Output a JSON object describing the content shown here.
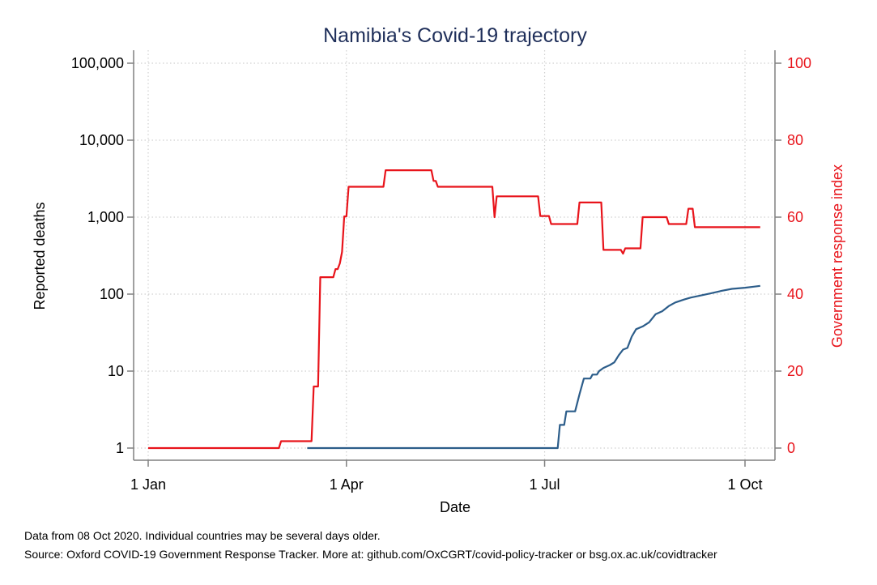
{
  "chart_data": {
    "type": "line",
    "title": "Namibia's Covid-19 trajectory",
    "xlabel": "Date",
    "ylabel_left": "Reported deaths",
    "ylabel_right": "Government response index",
    "x_ticks": [
      {
        "label": "1 Jan",
        "date": "2020-01-01"
      },
      {
        "label": "1 Apr",
        "date": "2020-04-01"
      },
      {
        "label": "1 Jul",
        "date": "2020-07-01"
      },
      {
        "label": "1 Oct",
        "date": "2020-10-01"
      }
    ],
    "y_left": {
      "scale": "log",
      "ticks": [
        "1",
        "10",
        "100",
        "1,000",
        "10,000",
        "100,000"
      ],
      "tick_values": [
        1,
        10,
        100,
        1000,
        10000,
        100000
      ]
    },
    "y_right": {
      "scale": "linear",
      "ticks": [
        "0",
        "20",
        "40",
        "60",
        "80",
        "100"
      ],
      "tick_values": [
        0,
        20,
        40,
        60,
        80,
        100
      ],
      "range": [
        0,
        100
      ]
    },
    "grid": true,
    "colors": {
      "deaths": "#2c5d8a",
      "response": "#e8141b",
      "axis": "#808080",
      "grid": "#d0d0d0",
      "title": "#1f2f5a"
    },
    "series": [
      {
        "axis": "right",
        "points": [
          [
            "2020-01-01",
            0
          ],
          [
            "2020-03-01",
            0
          ],
          [
            "2020-03-02",
            1.8
          ],
          [
            "2020-03-16",
            1.8
          ],
          [
            "2020-03-17",
            16
          ],
          [
            "2020-03-19",
            16
          ],
          [
            "2020-03-20",
            44.4
          ],
          [
            "2020-03-26",
            44.4
          ],
          [
            "2020-03-27",
            46.5
          ],
          [
            "2020-03-28",
            46.5
          ],
          [
            "2020-03-29",
            48
          ],
          [
            "2020-03-30",
            51
          ],
          [
            "2020-03-31",
            60.2
          ],
          [
            "2020-04-01",
            60.2
          ],
          [
            "2020-04-02",
            67.9
          ],
          [
            "2020-04-18",
            67.9
          ],
          [
            "2020-04-19",
            72.2
          ],
          [
            "2020-05-10",
            72.2
          ],
          [
            "2020-05-11",
            69.4
          ],
          [
            "2020-05-12",
            69.4
          ],
          [
            "2020-05-13",
            67.9
          ],
          [
            "2020-06-07",
            67.9
          ],
          [
            "2020-06-08",
            60
          ],
          [
            "2020-06-09",
            65.4
          ],
          [
            "2020-06-28",
            65.4
          ],
          [
            "2020-06-29",
            60.3
          ],
          [
            "2020-07-03",
            60.3
          ],
          [
            "2020-07-04",
            58.2
          ],
          [
            "2020-07-16",
            58.2
          ],
          [
            "2020-07-17",
            63.8
          ],
          [
            "2020-07-27",
            63.8
          ],
          [
            "2020-07-28",
            51.5
          ],
          [
            "2020-08-05",
            51.5
          ],
          [
            "2020-08-06",
            50.5
          ],
          [
            "2020-08-07",
            51.9
          ],
          [
            "2020-08-14",
            51.9
          ],
          [
            "2020-08-15",
            60
          ],
          [
            "2020-08-26",
            60
          ],
          [
            "2020-08-27",
            58.2
          ],
          [
            "2020-09-04",
            58.2
          ],
          [
            "2020-09-05",
            62.2
          ],
          [
            "2020-09-07",
            62.2
          ],
          [
            "2020-09-08",
            57.4
          ],
          [
            "2020-10-08",
            57.4
          ]
        ]
      },
      {
        "axis": "left",
        "points": [
          [
            "2020-03-14",
            1
          ],
          [
            "2020-07-07",
            1
          ],
          [
            "2020-07-08",
            2
          ],
          [
            "2020-07-10",
            2
          ],
          [
            "2020-07-11",
            3
          ],
          [
            "2020-07-15",
            3
          ],
          [
            "2020-07-17",
            5
          ],
          [
            "2020-07-19",
            8
          ],
          [
            "2020-07-22",
            8
          ],
          [
            "2020-07-23",
            9
          ],
          [
            "2020-07-25",
            9
          ],
          [
            "2020-07-26",
            10
          ],
          [
            "2020-07-28",
            11
          ],
          [
            "2020-07-31",
            12
          ],
          [
            "2020-08-02",
            13
          ],
          [
            "2020-08-04",
            16
          ],
          [
            "2020-08-06",
            19
          ],
          [
            "2020-08-08",
            20
          ],
          [
            "2020-08-10",
            28
          ],
          [
            "2020-08-12",
            35
          ],
          [
            "2020-08-15",
            38
          ],
          [
            "2020-08-18",
            43
          ],
          [
            "2020-08-21",
            55
          ],
          [
            "2020-08-24",
            60
          ],
          [
            "2020-08-27",
            70
          ],
          [
            "2020-08-30",
            78
          ],
          [
            "2020-09-03",
            85
          ],
          [
            "2020-09-06",
            90
          ],
          [
            "2020-09-10",
            95
          ],
          [
            "2020-09-15",
            102
          ],
          [
            "2020-09-20",
            110
          ],
          [
            "2020-09-25",
            117
          ],
          [
            "2020-10-01",
            121
          ],
          [
            "2020-10-05",
            125
          ],
          [
            "2020-10-08",
            128
          ]
        ]
      }
    ]
  },
  "notes": {
    "line1": "Data from 08 Oct 2020. Individual countries may be several days older.",
    "line2": "Source: Oxford COVID-19 Government Response Tracker. More at: github.com/OxCGRT/covid-policy-tracker or bsg.ox.ac.uk/covidtracker"
  }
}
